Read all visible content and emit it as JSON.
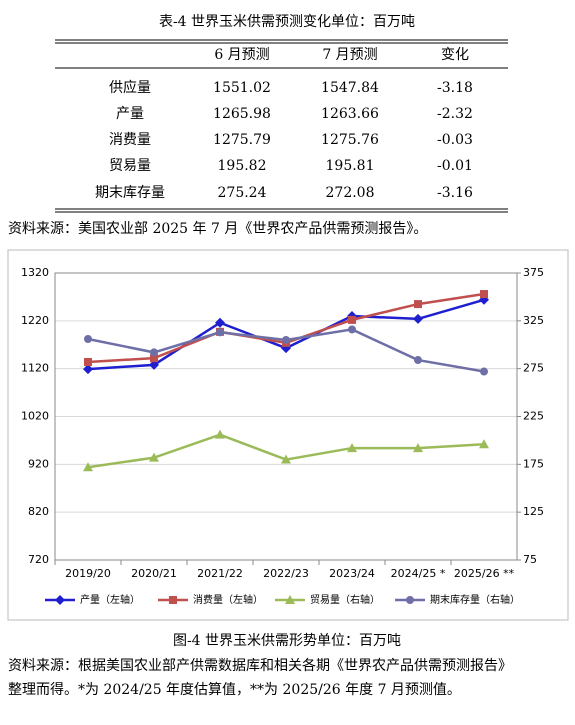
{
  "table": {
    "title": "表-4 世界玉米供需预测变化单位：百万吨",
    "header": [
      "6 月预测",
      "7 月预测",
      "变化"
    ],
    "rows": [
      [
        "供应量",
        1551.02,
        1547.84,
        -3.18
      ],
      [
        "产量",
        1265.98,
        1263.66,
        -2.32
      ],
      [
        "消费量",
        1275.79,
        1275.76,
        -0.03
      ],
      [
        "贸易量",
        195.82,
        195.81,
        -0.01
      ],
      [
        "期末库存量",
        275.24,
        272.08,
        -3.16
      ]
    ]
  },
  "source": "资料来源：美国农业部 2025 年 7 月《世界农产品供需预测报告》。",
  "chart_data": {
    "type": "line",
    "categories": [
      "2019/20",
      "2020/21",
      "2021/22",
      "2022/23",
      "2023/24",
      "2024/25 *",
      "2025/26 **"
    ],
    "ylim": [
      720,
      1320
    ],
    "yticks": [
      720,
      820,
      920,
      1020,
      1120,
      1220,
      1320
    ],
    "y2lim": [
      75,
      375
    ],
    "y2ticks": [
      75,
      125,
      175,
      225,
      275,
      325,
      375
    ],
    "series": [
      {
        "name": "产量（左轴）",
        "color": "#1f1fd0",
        "marker": "diamond",
        "values": [
          1119,
          1128,
          1216,
          1163,
          1230,
          1224,
          1264
        ]
      },
      {
        "name": "消费量（左轴）",
        "color": "#c0504d",
        "marker": "square",
        "values": [
          1134,
          1142,
          1197,
          1174,
          1222,
          1255,
          1276
        ]
      },
      {
        "name": "贸易量（右轴）",
        "color": "#9bbb59",
        "marker": "triangle",
        "axis": "y2",
        "values": [
          172,
          182,
          206,
          180,
          192,
          192,
          196
        ]
      },
      {
        "name": "期末库存量（右轴）",
        "color": "#6f6fa8",
        "marker": "circle",
        "axis": "y2",
        "values": [
          306,
          292,
          313,
          305,
          316,
          284,
          272
        ]
      }
    ]
  },
  "caption": "图-4 世界玉米供需形势单位：百万吨",
  "note_lines": [
    "资料来源：根据美国农业部产供需数据库和相关各期《世界农产品供需预测报告》",
    "整理而得。*为 2024/25 年度估算值，**为 2025/26 年度 7 月预测值。"
  ]
}
